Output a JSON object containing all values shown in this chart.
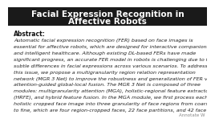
{
  "background_color": "#ffffff",
  "title_line1": "Facial Expression Recognition in",
  "title_line2": "Affective Robots",
  "title_bg_color": "#1a1a1a",
  "title_text_color": "#ffffff",
  "abstract_label": "Abstract:",
  "abstract_lines": [
    "Automatic facial expression recognition (FER) based on face images is",
    "essential for affective robots, which are designed for interactive companions",
    "and intelligent healthcare. Although existing DL-based FERs have made",
    "significant progress, an accurate FER model in robots is challenging due to the",
    "subtle differences in facial expressions across various scenarios. To address",
    "this issue, we propose a multigranularity region relation representation",
    "network (MGR 3 Net) to improve the robustness and generalization of FER via",
    "attention-guided global-local fusion. The MGR 3 Net is composed of three",
    "modules: multigranularity attention (MGA), holistic-regional feature extractor",
    "(HRFE), and hybrid feature fusion. In the MGA module, we first process each",
    "holistic cropped face image into three granularity of face regions from coarse",
    "to fine, which are four region-cropped faces, 22 face partitions, and 42 face"
  ],
  "watermark": "Annotate W",
  "title_fontsize": 7.5,
  "abstract_label_fontsize": 5.5,
  "body_fontsize": 4.6,
  "watermark_fontsize": 4.0
}
